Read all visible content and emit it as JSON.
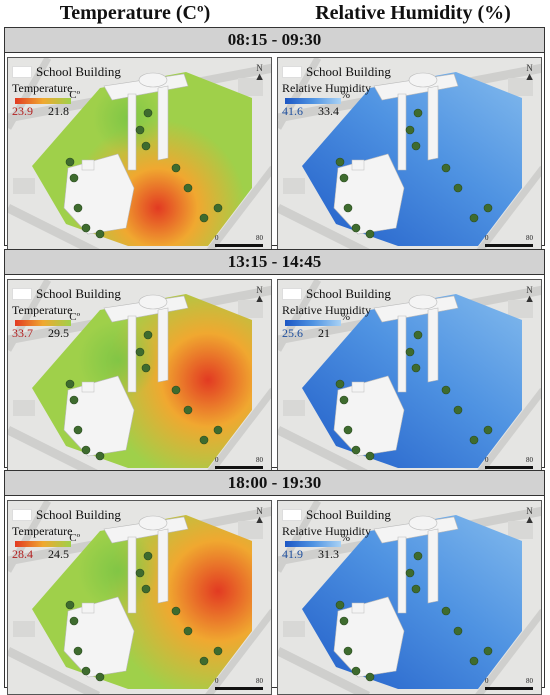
{
  "columns": {
    "temperature": "Temperature (Cº)",
    "humidity": "Relative Humidity (%)"
  },
  "legend": {
    "building_label": "School Building",
    "temp_title": "Temperature",
    "temp_unit": "Cº",
    "hum_title": "Relative Humidity",
    "hum_unit": "%"
  },
  "scale": {
    "start": "0",
    "end": "80"
  },
  "north": "N",
  "sections": [
    {
      "time": "08:15 - 09:30",
      "temp_min": "23.9",
      "temp_max": "21.8",
      "hum_min": "41.6",
      "hum_max": "33.4"
    },
    {
      "time": "13:15 - 14:45",
      "temp_min": "33.7",
      "temp_max": "29.5",
      "hum_min": "25.6",
      "hum_max": "21"
    },
    {
      "time": "18:00 - 19:30",
      "temp_min": "28.4",
      "temp_max": "24.5",
      "hum_min": "41.9",
      "hum_max": "31.3"
    }
  ],
  "colors": {
    "temp_hot": "#e23a22",
    "temp_mid": "#f0a830",
    "temp_cool": "#9fd04a",
    "hum_high": "#1b56c4",
    "hum_mid": "#4f93e2",
    "hum_low": "#a9d2f5",
    "building": "#f4f4f4",
    "street": "#cfcfcd",
    "tree": "#3e6b2e"
  }
}
